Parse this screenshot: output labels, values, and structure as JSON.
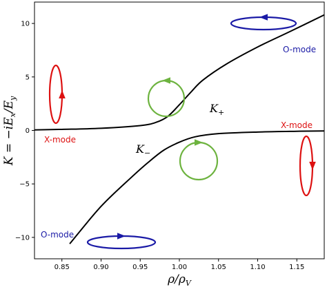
{
  "chart_data": {
    "type": "line",
    "title": "",
    "xlabel": "ρ/ρ",
    "xlabel_sub": "V",
    "ylabel": "K = −iE",
    "ylabel_sub1": "x",
    "ylabel_mid": "/E",
    "ylabel_sub2": "y",
    "xlim": [
      0.815,
      1.185
    ],
    "ylim": [
      -12.0,
      12.0
    ],
    "x_ticks": [
      0.85,
      0.9,
      0.95,
      1.0,
      1.05,
      1.1,
      1.15
    ],
    "x_tick_labels": [
      "0.85",
      "0.90",
      "0.95",
      "1.00",
      "1.05",
      "1.10",
      "1.15"
    ],
    "y_ticks": [
      -10,
      -5,
      0,
      5,
      10
    ],
    "y_tick_labels": [
      "−10",
      "−5",
      "0",
      "5",
      "10"
    ],
    "grid": false,
    "series": [
      {
        "name": "K+",
        "x": [
          0.815,
          0.85,
          0.9,
          0.95,
          0.97,
          0.985,
          1.0,
          1.015,
          1.03,
          1.06,
          1.1,
          1.14,
          1.185
        ],
        "y": [
          0.05,
          0.1,
          0.2,
          0.45,
          0.75,
          1.3,
          2.4,
          3.6,
          4.7,
          6.2,
          7.8,
          9.2,
          10.8
        ]
      },
      {
        "name": "K−",
        "x": [
          0.86,
          0.9,
          0.94,
          0.96,
          0.98,
          1.0,
          1.02,
          1.05,
          1.1,
          1.15,
          1.185
        ],
        "y": [
          -10.6,
          -7.1,
          -4.3,
          -3.0,
          -1.85,
          -1.1,
          -0.6,
          -0.3,
          -0.15,
          -0.08,
          -0.05
        ]
      }
    ],
    "colors": {
      "curve": "#000000",
      "x_mode": "#dd1111",
      "o_mode": "#1a1aa6",
      "circle": "#6db33f"
    },
    "annotations": {
      "o_mode_top": "O-mode",
      "x_mode_right": "X-mode",
      "x_mode_left": "X-mode",
      "o_mode_bottom": "O-mode",
      "k_plus_base": "K",
      "k_plus_sub": "+",
      "k_minus_base": "K",
      "k_minus_sub": "−"
    },
    "polarization_icons": [
      {
        "name": "o-mode-ellipse-top",
        "shape": "horizontal-ellipse",
        "color": "o_mode",
        "arrow": "left"
      },
      {
        "name": "x-mode-ellipse-left",
        "shape": "vertical-ellipse",
        "color": "x_mode",
        "arrow": "up"
      },
      {
        "name": "x-mode-ellipse-right",
        "shape": "vertical-ellipse",
        "color": "x_mode",
        "arrow": "down"
      },
      {
        "name": "o-mode-ellipse-bottom",
        "shape": "horizontal-ellipse",
        "color": "o_mode",
        "arrow": "right"
      },
      {
        "name": "circle-upper",
        "shape": "circle",
        "color": "circle",
        "arrow": "left"
      },
      {
        "name": "circle-lower",
        "shape": "circle",
        "color": "circle",
        "arrow": "right"
      }
    ]
  }
}
